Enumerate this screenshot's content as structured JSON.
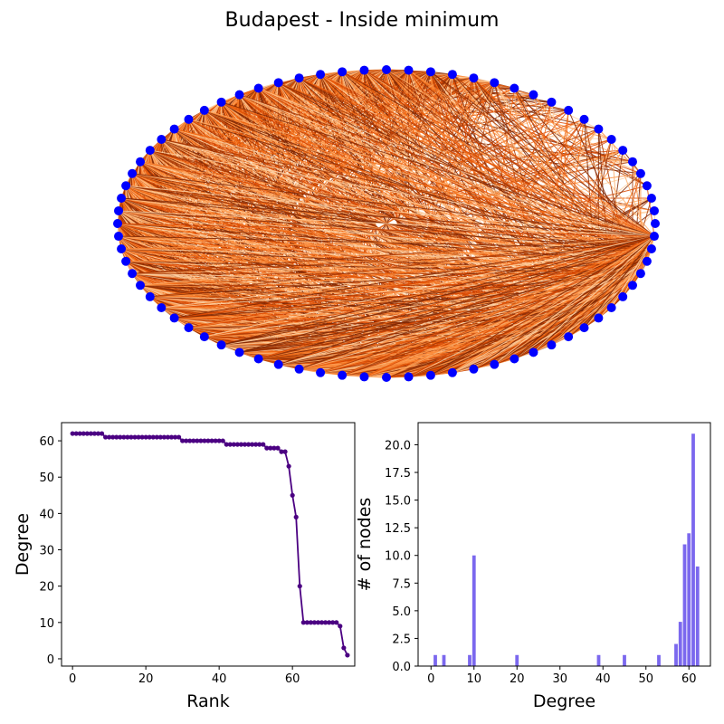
{
  "title": "Budapest - Inside minimum",
  "colors": {
    "node": "#0000ff",
    "edge_palette": [
      "#7f2704",
      "#a63603",
      "#d94801",
      "#f16913",
      "#fd8d3c",
      "#fdae6b",
      "#fdd0a2"
    ],
    "rank_line": "#4b0082",
    "hist_bar": "#7b68ee"
  },
  "chart_data": [
    {
      "type": "network",
      "layout": "circular",
      "node_count": 76
    },
    {
      "type": "line",
      "xlabel": "Rank",
      "ylabel": "Degree",
      "xlim": [
        -3,
        77
      ],
      "ylim": [
        -2,
        65
      ],
      "xticks": [
        0,
        20,
        40,
        60
      ],
      "yticks": [
        0,
        10,
        20,
        30,
        40,
        50,
        60
      ],
      "y": [
        62,
        62,
        62,
        62,
        62,
        62,
        62,
        62,
        62,
        61,
        61,
        61,
        61,
        61,
        61,
        61,
        61,
        61,
        61,
        61,
        61,
        61,
        61,
        61,
        61,
        61,
        61,
        61,
        61,
        61,
        60,
        60,
        60,
        60,
        60,
        60,
        60,
        60,
        60,
        60,
        60,
        60,
        59,
        59,
        59,
        59,
        59,
        59,
        59,
        59,
        59,
        59,
        59,
        58,
        58,
        58,
        58,
        57,
        57,
        53,
        45,
        39,
        20,
        10,
        10,
        10,
        10,
        10,
        10,
        10,
        10,
        10,
        10,
        9,
        3,
        1
      ]
    },
    {
      "type": "bar",
      "xlabel": "Degree",
      "ylabel": "# of nodes",
      "xlim": [
        -3,
        65
      ],
      "ylim": [
        0,
        22
      ],
      "xticks": [
        0,
        10,
        20,
        30,
        40,
        50,
        60
      ],
      "yticks": [
        0.0,
        2.5,
        5.0,
        7.5,
        10.0,
        12.5,
        15.0,
        17.5,
        20.0
      ],
      "x": [
        1,
        3,
        9,
        10,
        20,
        39,
        45,
        53,
        57,
        58,
        59,
        60,
        61,
        62
      ],
      "values": [
        1,
        1,
        1,
        10,
        1,
        1,
        1,
        1,
        2,
        4,
        11,
        12,
        21,
        9
      ]
    }
  ]
}
